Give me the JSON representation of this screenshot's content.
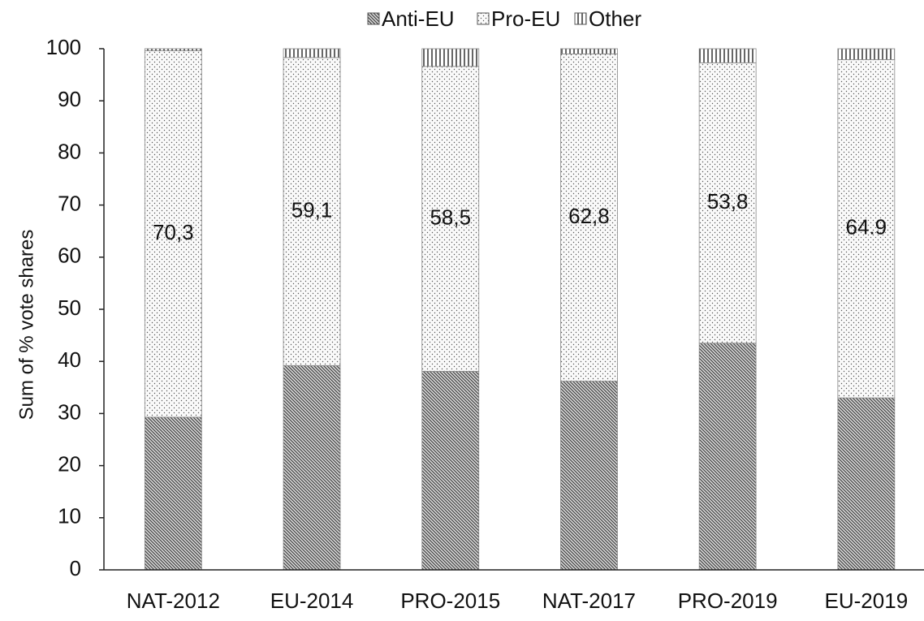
{
  "chart_data": {
    "type": "stacked_bar",
    "y_label": "Sum of % vote shares",
    "categories": [
      "NAT-2012",
      "EU-2014",
      "PRO-2015",
      "NAT-2017",
      "PRO-2019",
      "EU-2019"
    ],
    "series": [
      {
        "name": "Anti-EU",
        "color": "#444444",
        "pattern": "diagonal",
        "values": [
          29.3,
          39.2,
          38.1,
          36.2,
          43.5,
          33.0
        ]
      },
      {
        "name": "Pro-EU",
        "color": "#555555",
        "pattern": "dots",
        "values": [
          70.3,
          59.1,
          58.5,
          62.8,
          53.8,
          64.9
        ],
        "value_labels": [
          "70,3",
          "59,1",
          "58,5",
          "62,8",
          "53,8",
          "64.9"
        ]
      },
      {
        "name": "Other",
        "color": "#333333",
        "pattern": "vertical",
        "values": [
          0.4,
          1.7,
          3.4,
          1.0,
          2.7,
          2.1
        ]
      }
    ],
    "ylim": [
      0,
      100
    ],
    "yticks": [
      0,
      10,
      20,
      30,
      40,
      50,
      60,
      70,
      80,
      90,
      100
    ],
    "grid": false
  }
}
